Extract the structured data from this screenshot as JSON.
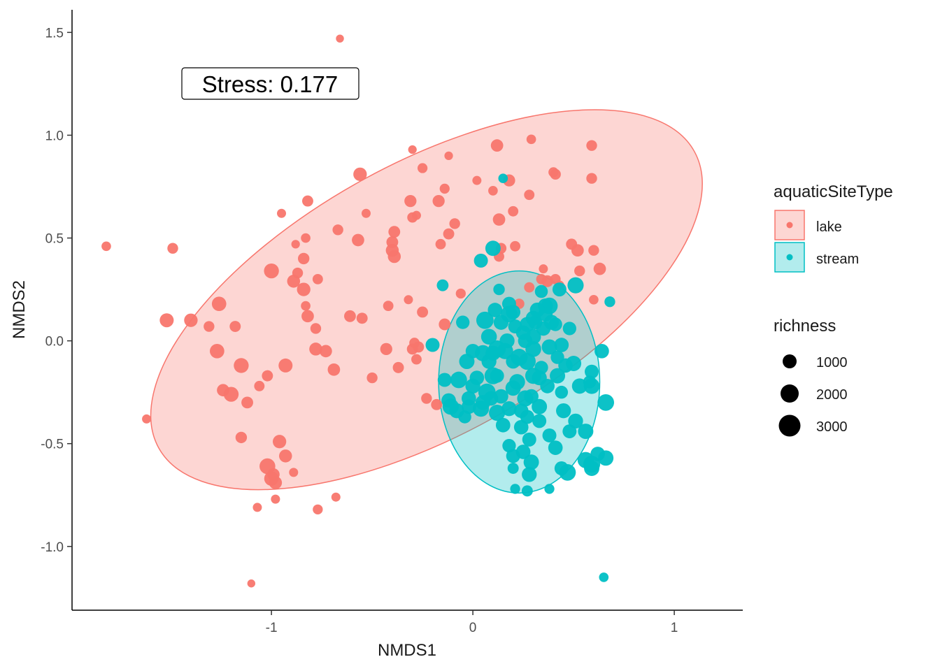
{
  "chart_data": {
    "type": "scatter",
    "xlabel": "NMDS1",
    "ylabel": "NMDS2",
    "xlim": [
      -1.99,
      1.34
    ],
    "ylim": [
      -1.31,
      1.61
    ],
    "x_ticks": [
      -1,
      0,
      1
    ],
    "x_tick_labels": [
      "-1",
      "0",
      "1"
    ],
    "y_ticks": [
      -1.0,
      -0.5,
      0.0,
      0.5,
      1.0,
      1.5
    ],
    "y_tick_labels": [
      "-1.0",
      "-0.5",
      "0.0",
      "0.5",
      "1.0",
      "1.5"
    ],
    "grid": false,
    "annotation": {
      "text": "Stress:  0.177",
      "x": -1.0,
      "y": 1.25
    },
    "color_legend": {
      "title": "aquaticSiteType",
      "position": "right",
      "entries": [
        {
          "label": "lake",
          "color": "#F8766D"
        },
        {
          "label": "stream",
          "color": "#00BFC4"
        }
      ]
    },
    "size_legend": {
      "title": "richness",
      "entries": [
        {
          "label": "1000",
          "value": 1000
        },
        {
          "label": "2000",
          "value": 2000
        },
        {
          "label": "3000",
          "value": 3000
        }
      ]
    },
    "ellipses": [
      {
        "series": "lake",
        "center": [
          -0.23,
          0.2
        ],
        "semi_major": 1.52,
        "semi_minor": 0.66,
        "angle_deg": 29
      },
      {
        "series": "stream",
        "center": [
          0.23,
          -0.2
        ],
        "semi_axis_x": 0.4,
        "semi_axis_y": 0.54,
        "angle_deg": 0
      }
    ],
    "series": [
      {
        "name": "lake",
        "color": "#F8766D",
        "points": [
          [
            -0.66,
            1.47,
            150
          ],
          [
            -1.82,
            0.46,
            300
          ],
          [
            -1.49,
            0.45,
            450
          ],
          [
            -1.1,
            -1.18,
            150
          ],
          [
            -1.62,
            -0.38,
            250
          ],
          [
            -1.52,
            0.1,
            1000
          ],
          [
            -1.4,
            0.1,
            900
          ],
          [
            -1.31,
            0.07,
            450
          ],
          [
            -1.26,
            0.18,
            1100
          ],
          [
            -1.27,
            -0.05,
            1100
          ],
          [
            -1.24,
            -0.24,
            700
          ],
          [
            -1.2,
            -0.26,
            1200
          ],
          [
            -1.18,
            0.07,
            500
          ],
          [
            -1.15,
            -0.12,
            1200
          ],
          [
            -1.12,
            -0.3,
            600
          ],
          [
            -1.15,
            -0.47,
            550
          ],
          [
            -1.06,
            -0.22,
            400
          ],
          [
            -1.02,
            -0.17,
            500
          ],
          [
            -1.0,
            0.34,
            1200
          ],
          [
            -0.95,
            0.62,
            250
          ],
          [
            -0.93,
            -0.12,
            1000
          ],
          [
            -0.96,
            -0.49,
            900
          ],
          [
            -1.02,
            -0.61,
            1400
          ],
          [
            -0.99,
            -0.65,
            700
          ],
          [
            -1.0,
            -0.67,
            1100
          ],
          [
            -0.98,
            -0.69,
            800
          ],
          [
            -0.93,
            -0.56,
            800
          ],
          [
            -0.89,
            -0.64,
            250
          ],
          [
            -0.98,
            -0.77,
            250
          ],
          [
            -1.07,
            -0.81,
            250
          ],
          [
            -0.77,
            -0.82,
            350
          ],
          [
            -0.68,
            -0.76,
            250
          ],
          [
            -0.82,
            0.68,
            500
          ],
          [
            -0.88,
            0.47,
            200
          ],
          [
            -0.83,
            0.5,
            300
          ],
          [
            -0.87,
            0.33,
            450
          ],
          [
            -0.84,
            0.4,
            550
          ],
          [
            -0.89,
            0.29,
            800
          ],
          [
            -0.84,
            0.25,
            900
          ],
          [
            -0.77,
            0.3,
            400
          ],
          [
            -0.83,
            0.17,
            300
          ],
          [
            -0.82,
            0.12,
            700
          ],
          [
            -0.78,
            0.06,
            450
          ],
          [
            -0.78,
            -0.04,
            800
          ],
          [
            -0.73,
            -0.05,
            700
          ],
          [
            -0.69,
            -0.14,
            700
          ],
          [
            -0.67,
            0.54,
            450
          ],
          [
            -0.57,
            0.49,
            700
          ],
          [
            -0.61,
            0.12,
            600
          ],
          [
            -0.55,
            0.11,
            500
          ],
          [
            -0.56,
            0.81,
            900
          ],
          [
            -0.53,
            0.62,
            250
          ],
          [
            -0.5,
            -0.18,
            450
          ],
          [
            -0.43,
            -0.04,
            650
          ],
          [
            -0.42,
            0.17,
            400
          ],
          [
            -0.4,
            0.44,
            800
          ],
          [
            -0.39,
            0.41,
            800
          ],
          [
            -0.4,
            0.48,
            600
          ],
          [
            -0.39,
            0.53,
            600
          ],
          [
            -0.37,
            -0.13,
            500
          ],
          [
            -0.29,
            -0.01,
            400
          ],
          [
            -0.3,
            0.93,
            200
          ],
          [
            -0.25,
            0.84,
            350
          ],
          [
            -0.3,
            0.6,
            400
          ],
          [
            -0.28,
            0.61,
            250
          ],
          [
            -0.32,
            0.2,
            250
          ],
          [
            -0.31,
            0.68,
            650
          ],
          [
            -0.3,
            -0.04,
            500
          ],
          [
            -0.27,
            -0.03,
            500
          ],
          [
            -0.28,
            -0.09,
            400
          ],
          [
            -0.25,
            0.14,
            500
          ],
          [
            -0.17,
            0.68,
            650
          ],
          [
            -0.23,
            -0.28,
            450
          ],
          [
            -0.14,
            0.08,
            600
          ],
          [
            -0.12,
            0.52,
            500
          ],
          [
            -0.18,
            -0.31,
            500
          ],
          [
            -0.16,
            0.47,
            400
          ],
          [
            -0.14,
            0.74,
            350
          ],
          [
            -0.12,
            0.9,
            200
          ],
          [
            -0.09,
            0.57,
            450
          ],
          [
            -0.06,
            0.23,
            350
          ],
          [
            0.02,
            0.78,
            250
          ],
          [
            0.1,
            0.73,
            300
          ],
          [
            0.14,
            0.45,
            450
          ],
          [
            0.13,
            0.41,
            400
          ],
          [
            0.12,
            0.95,
            700
          ],
          [
            0.13,
            0.59,
            700
          ],
          [
            0.18,
            0.78,
            650
          ],
          [
            0.2,
            0.63,
            400
          ],
          [
            0.21,
            0.46,
            400
          ],
          [
            0.29,
            0.98,
            300
          ],
          [
            0.28,
            0.71,
            400
          ],
          [
            0.34,
            0.3,
            400
          ],
          [
            0.35,
            0.35,
            250
          ],
          [
            0.41,
            0.81,
            450
          ],
          [
            0.4,
            0.82,
            350
          ],
          [
            0.37,
            0.29,
            600
          ],
          [
            0.41,
            0.3,
            400
          ],
          [
            0.43,
            0.27,
            300
          ],
          [
            0.49,
            0.47,
            500
          ],
          [
            0.52,
            0.44,
            700
          ],
          [
            0.53,
            0.34,
            450
          ],
          [
            0.59,
            0.95,
            450
          ],
          [
            0.59,
            0.79,
            450
          ],
          [
            0.6,
            0.44,
            450
          ],
          [
            0.63,
            0.35,
            700
          ],
          [
            0.6,
            0.2,
            300
          ],
          [
            0.28,
            0.26,
            400
          ],
          [
            0.23,
            0.18,
            400
          ]
        ]
      },
      {
        "name": "stream",
        "color": "#00BFC4",
        "points": [
          [
            0.15,
            0.79,
            300
          ],
          [
            0.1,
            0.45,
            1300
          ],
          [
            0.04,
            0.39,
            1000
          ],
          [
            -0.15,
            0.27,
            600
          ],
          [
            0.13,
            0.25,
            550
          ],
          [
            0.2,
            0.14,
            1100
          ],
          [
            0.34,
            0.24,
            800
          ],
          [
            0.43,
            0.25,
            1000
          ],
          [
            0.51,
            0.27,
            1500
          ],
          [
            0.68,
            0.19,
            450
          ],
          [
            0.64,
            -0.05,
            1100
          ],
          [
            0.36,
            0.17,
            1200
          ],
          [
            0.38,
            0.17,
            1600
          ],
          [
            0.3,
            0.11,
            1200
          ],
          [
            0.25,
            0.04,
            1100
          ],
          [
            0.06,
            0.1,
            1800
          ],
          [
            0.08,
            0.02,
            1400
          ],
          [
            0.12,
            -0.04,
            1800
          ],
          [
            0.16,
            -0.05,
            1500
          ],
          [
            0.18,
            0.13,
            1600
          ],
          [
            -0.05,
            0.09,
            900
          ],
          [
            -0.2,
            -0.02,
            1000
          ],
          [
            -0.14,
            -0.19,
            1000
          ],
          [
            -0.07,
            -0.19,
            1600
          ],
          [
            -0.12,
            -0.29,
            1100
          ],
          [
            -0.11,
            -0.32,
            1500
          ],
          [
            -0.08,
            -0.34,
            1200
          ],
          [
            -0.04,
            -0.37,
            800
          ],
          [
            0.04,
            -0.33,
            1500
          ],
          [
            0.07,
            -0.25,
            1800
          ],
          [
            0.12,
            -0.35,
            1500
          ],
          [
            0.18,
            -0.33,
            1200
          ],
          [
            0.22,
            -0.2,
            1400
          ],
          [
            0.27,
            -0.1,
            1700
          ],
          [
            0.3,
            -0.04,
            1400
          ],
          [
            0.26,
            -0.28,
            1500
          ],
          [
            0.33,
            -0.32,
            1300
          ],
          [
            0.24,
            -0.42,
            1100
          ],
          [
            0.28,
            -0.48,
            1000
          ],
          [
            0.18,
            -0.51,
            900
          ],
          [
            0.2,
            -0.56,
            1000
          ],
          [
            0.25,
            -0.54,
            1100
          ],
          [
            0.29,
            -0.59,
            1300
          ],
          [
            0.28,
            -0.65,
            1200
          ],
          [
            0.2,
            -0.62,
            500
          ],
          [
            0.27,
            -0.73,
            500
          ],
          [
            0.21,
            -0.72,
            350
          ],
          [
            0.38,
            -0.72,
            350
          ],
          [
            0.38,
            -0.46,
            1000
          ],
          [
            0.41,
            -0.52,
            1100
          ],
          [
            0.44,
            -0.62,
            1000
          ],
          [
            0.47,
            -0.64,
            1600
          ],
          [
            0.48,
            -0.44,
            1000
          ],
          [
            0.51,
            -0.39,
            1200
          ],
          [
            0.56,
            -0.44,
            1300
          ],
          [
            0.56,
            -0.58,
            1500
          ],
          [
            0.59,
            -0.6,
            1700
          ],
          [
            0.59,
            -0.62,
            1300
          ],
          [
            0.62,
            -0.55,
            1100
          ],
          [
            0.66,
            -0.57,
            1300
          ],
          [
            0.53,
            -0.22,
            1300
          ],
          [
            0.59,
            -0.15,
            1000
          ],
          [
            0.59,
            -0.22,
            1400
          ],
          [
            0.58,
            -0.2,
            800
          ],
          [
            0.66,
            -0.3,
            1600
          ],
          [
            0.65,
            -1.15,
            300
          ],
          [
            0.44,
            -0.25,
            800
          ],
          [
            0.5,
            -0.11,
            1300
          ],
          [
            0.42,
            -0.08,
            900
          ],
          [
            0.34,
            -0.13,
            900
          ],
          [
            0.35,
            0.06,
            1100
          ],
          [
            0.41,
            0.08,
            900
          ],
          [
            0.1,
            -0.17,
            1700
          ],
          [
            0.05,
            -0.06,
            1500
          ],
          [
            0.0,
            -0.22,
            1200
          ],
          [
            -0.03,
            -0.1,
            1300
          ],
          [
            0.14,
            0.09,
            1200
          ],
          [
            0.23,
            -0.08,
            1700
          ],
          [
            0.17,
            0.0,
            1200
          ],
          [
            0.2,
            -0.23,
            1300
          ],
          [
            0.29,
            -0.27,
            1100
          ],
          [
            0.3,
            -0.17,
            1500
          ],
          [
            0.26,
            0.0,
            1100
          ],
          [
            0.31,
            0.09,
            1000
          ],
          [
            0.3,
            0.02,
            1300
          ],
          [
            0.38,
            -0.03,
            1300
          ],
          [
            0.39,
            0.09,
            1200
          ],
          [
            0.46,
            -0.12,
            1100
          ],
          [
            0.45,
            -0.34,
            1200
          ],
          [
            0.33,
            -0.39,
            1000
          ],
          [
            0.15,
            -0.41,
            1100
          ],
          [
            0.09,
            -0.28,
            1100
          ],
          [
            -0.02,
            -0.32,
            1100
          ],
          [
            0.02,
            -0.18,
            1100
          ],
          [
            0.0,
            -0.05,
            1100
          ],
          [
            0.08,
            -0.1,
            1200
          ],
          [
            0.12,
            -0.17,
            1000
          ],
          [
            0.2,
            -0.1,
            1100
          ],
          [
            0.27,
            0.08,
            1200
          ],
          [
            0.32,
            0.15,
            1200
          ],
          [
            0.36,
            0.13,
            1100
          ],
          [
            0.18,
            0.18,
            1000
          ],
          [
            0.11,
            0.15,
            1100
          ],
          [
            0.33,
            -0.18,
            1200
          ],
          [
            0.37,
            -0.22,
            1100
          ],
          [
            0.24,
            -0.34,
            1100
          ],
          [
            -0.02,
            -0.28,
            1100
          ],
          [
            0.05,
            -0.3,
            1200
          ],
          [
            0.1,
            -0.06,
            1200
          ],
          [
            0.21,
            0.07,
            1000
          ],
          [
            0.14,
            -0.27,
            1100
          ],
          [
            0.27,
            -0.37,
            1000
          ],
          [
            0.44,
            -0.02,
            1100
          ],
          [
            0.48,
            0.06,
            900
          ],
          [
            0.42,
            -0.17,
            1300
          ]
        ]
      }
    ]
  }
}
